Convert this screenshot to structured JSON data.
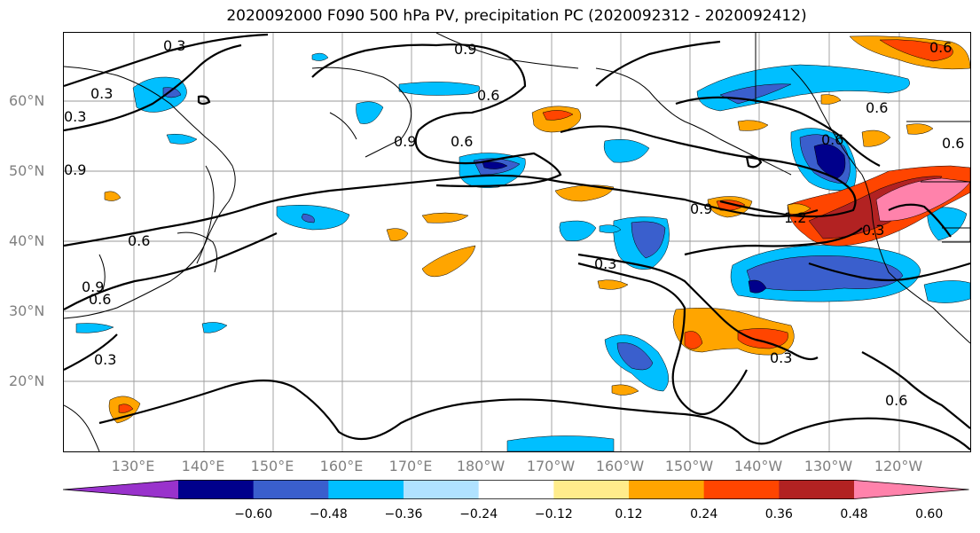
{
  "title": "2020092000 F090 500 hPa PV, precipitation PC (2020092312 - 2020092412)",
  "lat_labels": [
    "60°N",
    "50°N",
    "40°N",
    "30°N",
    "20°N"
  ],
  "lon_labels": [
    "130°E",
    "140°E",
    "150°E",
    "160°E",
    "170°E",
    "180°W",
    "170°W",
    "160°W",
    "150°W",
    "140°W",
    "130°W",
    "120°W"
  ],
  "contour_labels": [
    "0.3",
    "0.9",
    "0.6",
    "0.3",
    "0.9",
    "0.6",
    "0.6",
    "0.9",
    "0.9",
    "0.6",
    "0.6",
    "1.2",
    "0.3",
    "0.6",
    "0.3",
    "0.6",
    "0.6",
    "0.3",
    "0.9",
    "0.3",
    "0.6",
    "0.3"
  ],
  "colorbar": {
    "ticks": [
      "−0.60",
      "−0.48",
      "−0.36",
      "−0.24",
      "−0.12",
      "0.12",
      "0.24",
      "0.36",
      "0.48",
      "0.60"
    ],
    "colors": [
      "#9932cc",
      "#00008b",
      "#3a5fcd",
      "#00bfff",
      "#b0e2ff",
      "#ffffff",
      "#ffec8b",
      "#ffa500",
      "#ff4500",
      "#b22222",
      "#ff82ab"
    ]
  }
}
